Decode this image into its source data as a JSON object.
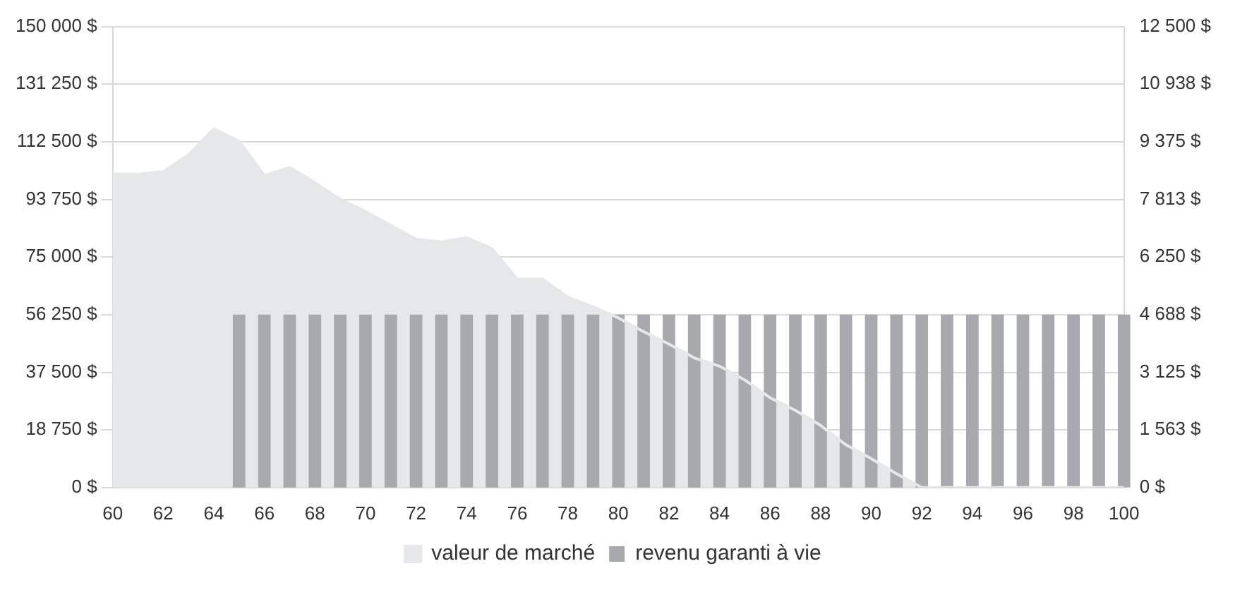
{
  "chart_data": {
    "type": "bar",
    "categories": [
      "60",
      null,
      "62",
      null,
      "64",
      null,
      "66",
      null,
      "68",
      null,
      "70",
      null,
      "72",
      null,
      "74",
      null,
      "76",
      null,
      "78",
      null,
      "80",
      null,
      "82",
      null,
      "84",
      null,
      "86",
      null,
      "88",
      null,
      "90",
      null,
      "92",
      null,
      "94",
      null,
      "96",
      null,
      "98",
      null,
      "100"
    ],
    "series": [
      {
        "name": "valeur de marché",
        "type": "area",
        "color": "#e6e7e8",
        "values": [
          102000,
          102000,
          102800,
          108200,
          116700,
          112700,
          101500,
          104200,
          99200,
          93800,
          89800,
          85300,
          80800,
          79900,
          81300,
          77700,
          67800,
          67800,
          62000,
          58800,
          55200,
          50700,
          46700,
          42200,
          39500,
          35000,
          29200,
          25100,
          20200,
          13900,
          9400,
          4500,
          0,
          0,
          0,
          0,
          0,
          0,
          0,
          0,
          0
        ]
      },
      {
        "name": "revenu garanti à vie",
        "axis": "y2",
        "color": "#a7a9ac",
        "values": [
          null,
          null,
          null,
          null,
          null,
          4688,
          4688,
          4688,
          4688,
          4688,
          4688,
          4688,
          4688,
          4688,
          4688,
          4688,
          4688,
          4688,
          4688,
          4688,
          4688,
          4688,
          4688,
          4688,
          4688,
          4688,
          4688,
          4688,
          4688,
          4688,
          4688,
          4688,
          4688,
          4688,
          4688,
          4688,
          4688,
          4688,
          4688,
          4688,
          4688
        ]
      }
    ],
    "ylim": [
      0,
      150000
    ],
    "yticks": [
      {
        "value": 0,
        "label": "0 $"
      },
      {
        "value": 18750,
        "label": "18 750 $"
      },
      {
        "value": 37500,
        "label": "37 500 $"
      },
      {
        "value": 56250,
        "label": "56 250 $"
      },
      {
        "value": 75000,
        "label": "75 000 $"
      },
      {
        "value": 93750,
        "label": "93 750 $"
      },
      {
        "value": 112500,
        "label": "112 500 $"
      },
      {
        "value": 131250,
        "label": "131 250 $"
      },
      {
        "value": 150000,
        "label": "150 000 $"
      }
    ],
    "y2lim": [
      0,
      12500
    ],
    "y2ticks": [
      {
        "value": 0,
        "label": "0 $"
      },
      {
        "value": 1563,
        "label": "1 563 $"
      },
      {
        "value": 3125,
        "label": "3 125 $"
      },
      {
        "value": 4688,
        "label": "4 688 $"
      },
      {
        "value": 6250,
        "label": "6 250 $"
      },
      {
        "value": 7813,
        "label": "7 813 $"
      },
      {
        "value": 9375,
        "label": "9 375 $"
      },
      {
        "value": 10938,
        "label": "10 938 $"
      },
      {
        "value": 12500,
        "label": "12 500 $"
      }
    ],
    "grid": "y",
    "legend": "bottom"
  }
}
